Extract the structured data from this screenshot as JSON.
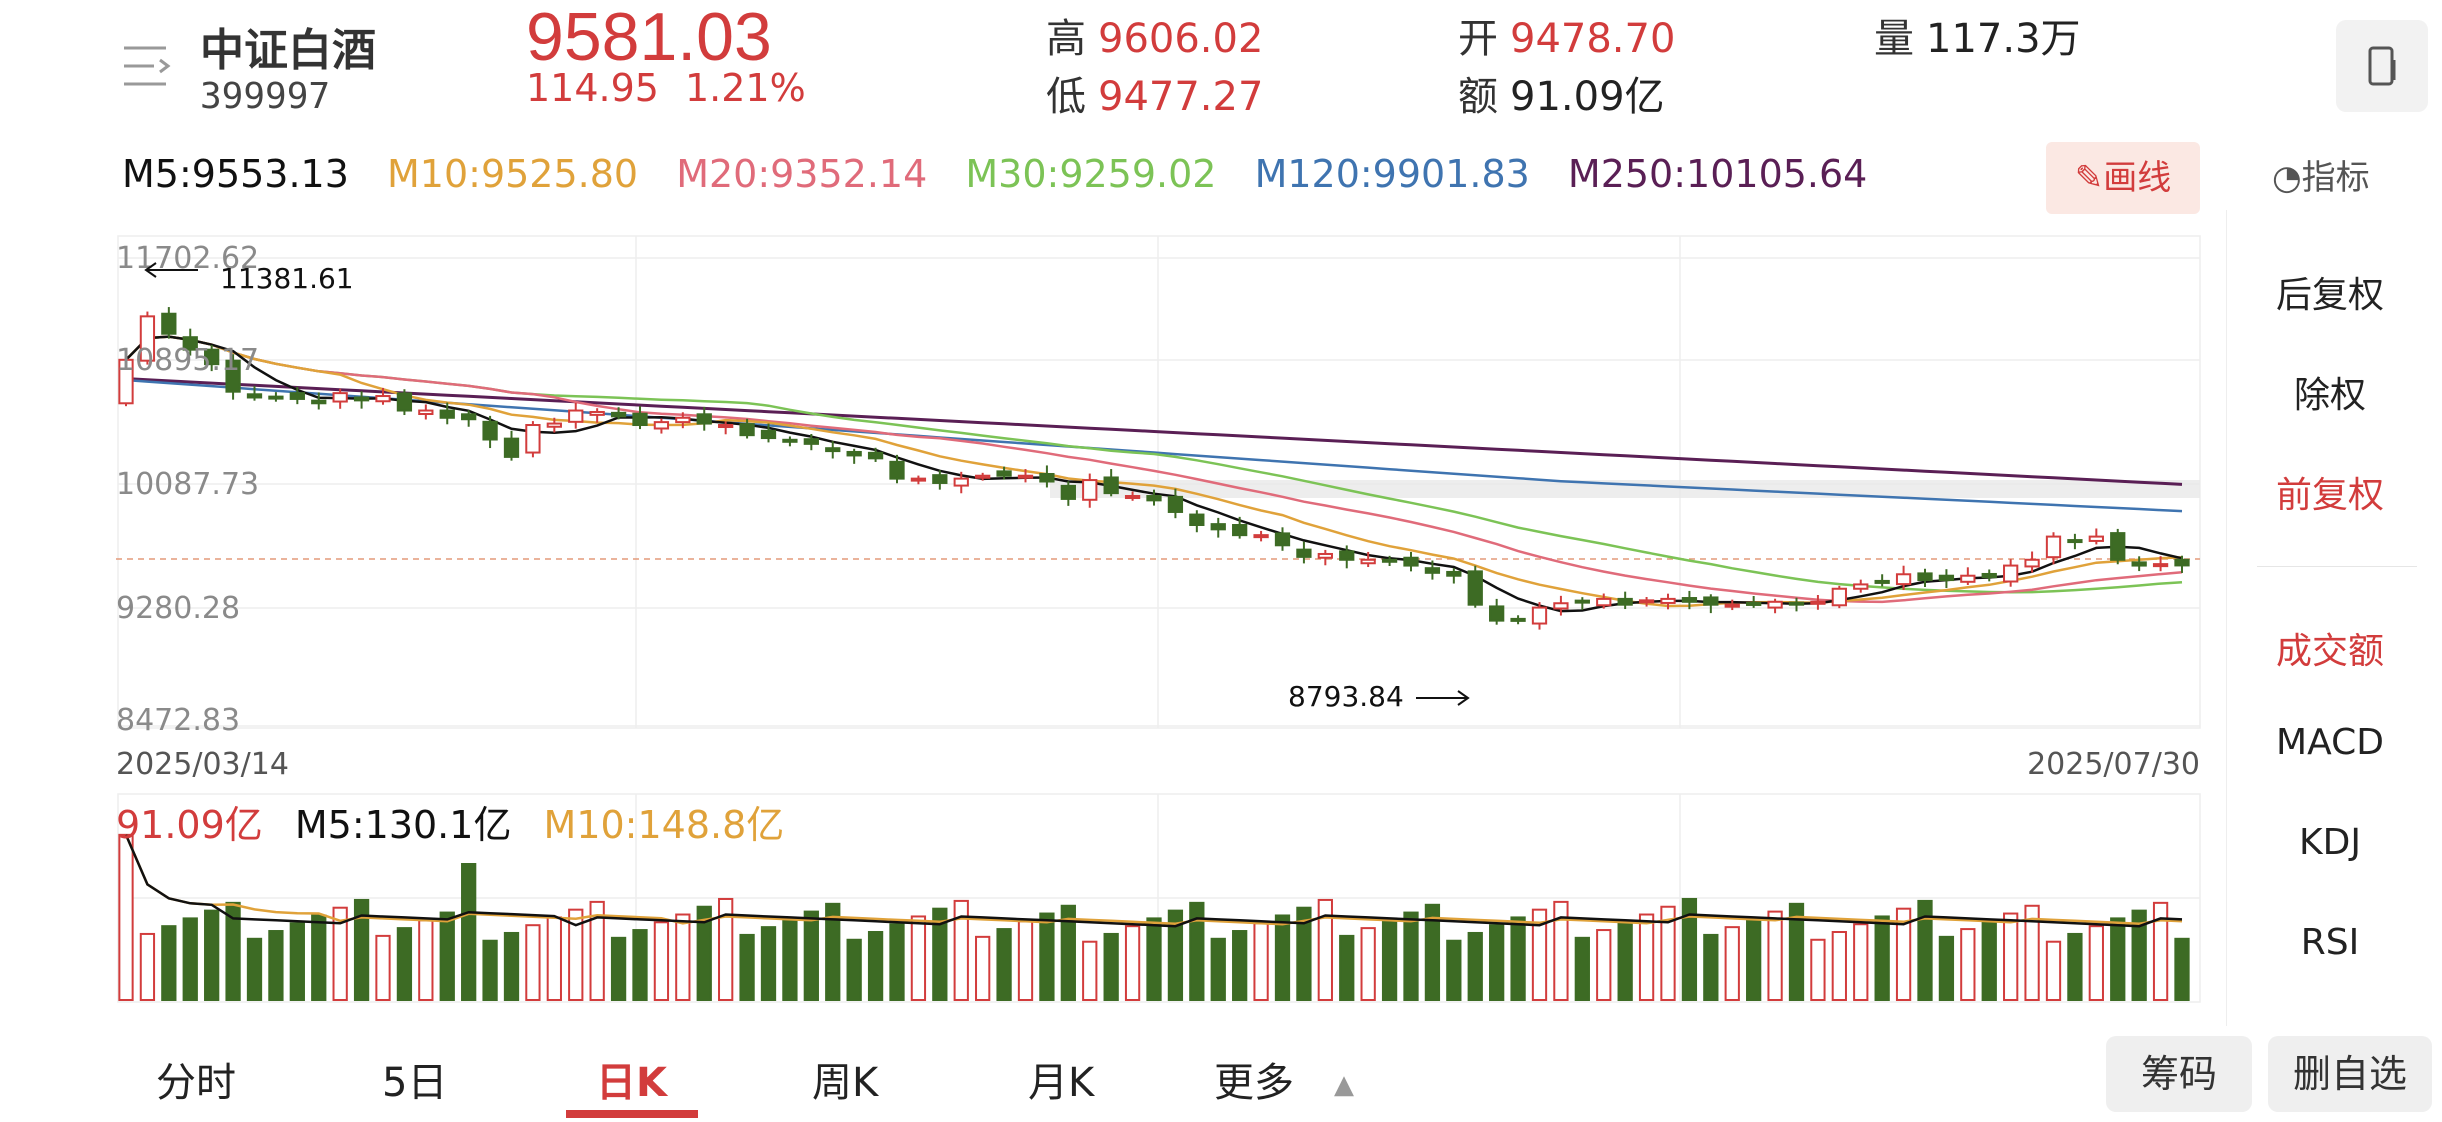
{
  "header": {
    "name": "中证白酒",
    "code": "399997",
    "price": "9581.03",
    "change": "114.95",
    "change_pct": "1.21%",
    "high_label": "高",
    "high": "9606.02",
    "low_label": "低",
    "low": "9477.27",
    "open_label": "开",
    "open": "9478.70",
    "amount_label": "额",
    "amount": "91.09亿",
    "volume_label": "量",
    "volume": "117.3万"
  },
  "ma": {
    "m5": "M5:9553.13",
    "m10": "M10:9525.80",
    "m20": "M20:9352.14",
    "m30": "M30:9259.02",
    "m120": "M120:9901.83",
    "m250": "M250:10105.64"
  },
  "toolbar": {
    "draw_label": "✎画线",
    "indicator_label": "指标"
  },
  "side_panel": {
    "items": [
      "后复权",
      "除权",
      "前复权",
      "成交额",
      "MACD",
      "KDJ",
      "RSI"
    ],
    "active_adjust": "前复权",
    "active_indicator": "成交额"
  },
  "axis": {
    "y_ticks": [
      "11702.62",
      "10895.17",
      "10087.73",
      "9280.28",
      "8472.83"
    ],
    "start_date": "2025/03/14",
    "end_date": "2025/07/30",
    "max_label": "11381.61",
    "min_label": "8793.84"
  },
  "volume": {
    "current": "91.09亿",
    "m5": "M5:130.1亿",
    "m10": "M10:148.8亿"
  },
  "tabs": [
    "分时",
    "5日",
    "日K",
    "周K",
    "月K",
    "更多"
  ],
  "active_tab": "日K",
  "bottom_buttons": {
    "chips": "筹码",
    "remove": "删自选"
  },
  "colors": {
    "up": "#d23c3c",
    "down": "#3d6b24",
    "m5": "#111111",
    "m10": "#e0a23a",
    "m20": "#e06b7a",
    "m30": "#7cc356",
    "m120": "#3f74b0",
    "m250": "#5a1f55"
  },
  "chart_data": {
    "type": "candlestick",
    "y_range": [
      8472.83,
      11702.62
    ],
    "closes": [
      11000,
      11300,
      11180,
      11070,
      10970,
      10780,
      10740,
      10740,
      10730,
      10700,
      10770,
      10720,
      10750,
      10650,
      10650,
      10600,
      10590,
      10450,
      10330,
      10550,
      10560,
      10650,
      10640,
      10610,
      10550,
      10570,
      10600,
      10560,
      10550,
      10480,
      10460,
      10440,
      10420,
      10370,
      10340,
      10320,
      10180,
      10180,
      10150,
      10180,
      10200,
      10200,
      10200,
      10160,
      10040,
      10170,
      10080,
      10060,
      10030,
      9950,
      9860,
      9830,
      9790,
      9790,
      9720,
      9640,
      9660,
      9620,
      9620,
      9610,
      9580,
      9530,
      9510,
      9310,
      9200,
      9210,
      9290,
      9320,
      9330,
      9350,
      9310,
      9340,
      9350,
      9330,
      9310,
      9310,
      9320,
      9330,
      9310,
      9330,
      9420,
      9450,
      9470,
      9520,
      9480,
      9480,
      9510,
      9500,
      9580,
      9620,
      9780,
      9750,
      9780,
      9620,
      9580,
      9590,
      9581
    ]
  }
}
